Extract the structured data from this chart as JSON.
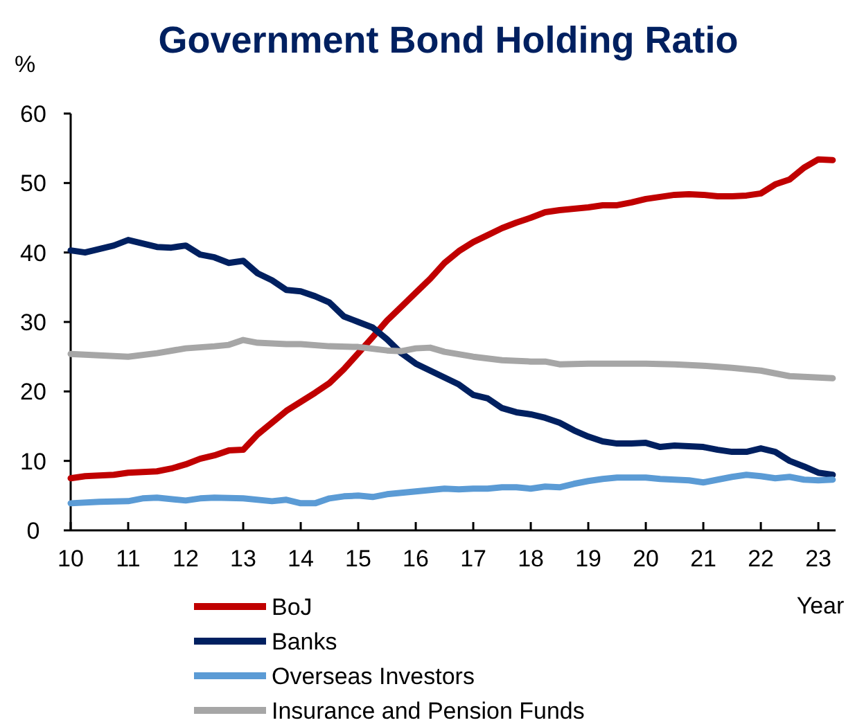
{
  "chart_data": {
    "type": "line",
    "title": "Government Bond Holding Ratio",
    "ylabel": "%",
    "xlabel": "Year",
    "xlim": [
      10,
      23.3
    ],
    "xticks": [
      10,
      11,
      12,
      13,
      14,
      15,
      16,
      17,
      18,
      19,
      20,
      21,
      22,
      23
    ],
    "ylim": [
      0,
      60
    ],
    "yticks": [
      0,
      10,
      20,
      30,
      40,
      50,
      60
    ],
    "grid": false,
    "legend": "bottom",
    "marker": "none",
    "line_style": "solid",
    "series": [
      {
        "name": "BoJ",
        "color": "#c00000",
        "x": [
          10,
          10.25,
          10.5,
          10.75,
          11,
          11.25,
          11.5,
          11.75,
          12,
          12.25,
          12.5,
          12.75,
          13,
          13.25,
          13.5,
          13.75,
          14,
          14.25,
          14.5,
          14.75,
          15,
          15.25,
          15.5,
          15.75,
          16,
          16.25,
          16.5,
          16.75,
          17,
          17.25,
          17.5,
          17.75,
          18,
          18.25,
          18.5,
          18.75,
          19,
          19.25,
          19.5,
          19.75,
          20,
          20.25,
          20.5,
          20.75,
          21,
          21.25,
          21.5,
          21.75,
          22,
          22.25,
          22.5,
          22.75,
          23,
          23.25
        ],
        "values": [
          7.5,
          7.8,
          7.9,
          8.0,
          8.3,
          8.4,
          8.5,
          8.9,
          9.5,
          10.3,
          10.8,
          11.5,
          11.6,
          13.8,
          15.5,
          17.2,
          18.5,
          19.8,
          21.2,
          23.2,
          25.5,
          27.8,
          30.2,
          32.2,
          34.2,
          36.2,
          38.5,
          40.2,
          41.5,
          42.5,
          43.5,
          44.3,
          45,
          45.8,
          46.1,
          46.3,
          46.5,
          46.8,
          46.8,
          47.2,
          47.7,
          48,
          48.3,
          48.4,
          48.3,
          48.1,
          48.1,
          48.2,
          48.5,
          49.8,
          50.5,
          52.2,
          53.4,
          53.3
        ]
      },
      {
        "name": "Banks",
        "color": "#002060",
        "x": [
          10,
          10.25,
          10.5,
          10.75,
          11,
          11.25,
          11.5,
          11.75,
          12,
          12.25,
          12.5,
          12.75,
          13,
          13.25,
          13.5,
          13.75,
          14,
          14.25,
          14.5,
          14.75,
          15,
          15.25,
          15.5,
          15.75,
          16,
          16.25,
          16.5,
          16.75,
          17,
          17.25,
          17.5,
          17.75,
          18,
          18.25,
          18.5,
          18.75,
          19,
          19.25,
          19.5,
          19.75,
          20,
          20.25,
          20.5,
          20.75,
          21,
          21.25,
          21.5,
          21.75,
          22,
          22.25,
          22.5,
          22.75,
          23,
          23.25
        ],
        "values": [
          40.3,
          40,
          40.5,
          41,
          41.8,
          41.3,
          40.8,
          40.7,
          41,
          39.7,
          39.3,
          38.5,
          38.8,
          37,
          36,
          34.6,
          34.4,
          33.7,
          32.8,
          30.8,
          30,
          29.2,
          27.5,
          25.5,
          24,
          23,
          22,
          21,
          19.5,
          19,
          17.6,
          17,
          16.7,
          16.2,
          15.5,
          14.4,
          13.5,
          12.8,
          12.5,
          12.5,
          12.6,
          12,
          12.2,
          12.1,
          12,
          11.6,
          11.3,
          11.3,
          11.8,
          11.3,
          10,
          9.2,
          8.3,
          8
        ]
      },
      {
        "name": "Overseas Investors",
        "color": "#5b9bd5",
        "x": [
          10,
          10.5,
          11,
          11.25,
          11.5,
          12,
          12.25,
          12.5,
          13,
          13.5,
          13.75,
          14,
          14.25,
          14.5,
          14.75,
          15,
          15.25,
          15.5,
          15.75,
          16,
          16.25,
          16.5,
          16.75,
          17,
          17.25,
          17.5,
          17.75,
          18,
          18.25,
          18.5,
          18.75,
          19,
          19.25,
          19.5,
          19.75,
          20,
          20.25,
          20.5,
          20.75,
          21,
          21.25,
          21.5,
          21.75,
          22,
          22.25,
          22.5,
          22.75,
          23,
          23.25
        ],
        "values": [
          3.9,
          4.1,
          4.2,
          4.6,
          4.7,
          4.3,
          4.6,
          4.7,
          4.6,
          4.2,
          4.4,
          3.9,
          3.9,
          4.6,
          4.9,
          5,
          4.8,
          5.2,
          5.4,
          5.6,
          5.8,
          6,
          5.9,
          6,
          6,
          6.2,
          6.2,
          6,
          6.3,
          6.2,
          6.7,
          7.1,
          7.4,
          7.6,
          7.6,
          7.6,
          7.4,
          7.3,
          7.2,
          6.9,
          7.3,
          7.7,
          8,
          7.8,
          7.5,
          7.7,
          7.3,
          7.2,
          7.3
        ]
      },
      {
        "name": "Insurance and Pension Funds",
        "color": "#a6a6a6",
        "x": [
          10,
          10.5,
          11,
          11.5,
          12,
          12.5,
          12.75,
          13,
          13.25,
          13.75,
          14,
          14.5,
          15,
          15.5,
          15.75,
          16,
          16.25,
          16.5,
          17,
          17.5,
          18,
          18.25,
          18.5,
          19,
          19.5,
          20,
          20.5,
          21,
          21.5,
          22,
          22.5,
          23,
          23.25
        ],
        "values": [
          25.4,
          25.2,
          25,
          25.5,
          26.2,
          26.5,
          26.7,
          27.4,
          27,
          26.8,
          26.8,
          26.5,
          26.4,
          25.9,
          25.8,
          26.2,
          26.3,
          25.7,
          25,
          24.5,
          24.3,
          24.3,
          23.9,
          24,
          24,
          24,
          23.9,
          23.7,
          23.4,
          23,
          22.2,
          22,
          21.9
        ]
      }
    ]
  }
}
